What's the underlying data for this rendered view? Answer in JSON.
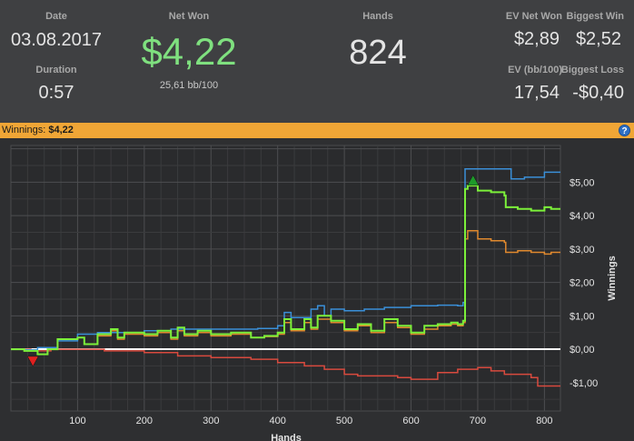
{
  "stats": {
    "date_label": "Date",
    "date": "03.08.2017",
    "duration_label": "Duration",
    "duration": "0:57",
    "net_won_label": "Net Won",
    "net_won": "$4,22",
    "bb_per_100": "25,61 bb/100",
    "hands_label": "Hands",
    "hands": "824",
    "ev_net_won_label": "EV Net Won",
    "ev_net_won": "$2,89",
    "biggest_win_label": "Biggest Win",
    "biggest_win": "$2,52",
    "ev_bb_label": "EV (bb/100)",
    "ev_bb": "17,54",
    "biggest_loss_label": "Biggest Loss",
    "biggest_loss": "-$0,40"
  },
  "winnings_bar": {
    "label": "Winnings:",
    "value": "$4,22",
    "help_icon": "question-icon",
    "help_glyph": "?"
  },
  "colors": {
    "net_won": "#7fe07f",
    "bar": "#f0a636",
    "green_line": "#7cf03a",
    "blue_line": "#3a8fd8",
    "orange_line": "#e0892e",
    "red_line": "#d84a3e",
    "zero_line": "#ffffff"
  },
  "chart_data": {
    "type": "line",
    "xlabel": "Hands",
    "ylabel": "Winnings",
    "xlim": [
      0,
      824
    ],
    "ylim": [
      -1.85,
      6.1
    ],
    "x_ticks": [
      100,
      200,
      300,
      400,
      500,
      600,
      700,
      800
    ],
    "x_tick_labels": [
      "100",
      "200",
      "300",
      "400",
      "500",
      "600",
      "700",
      "800"
    ],
    "y_ticks": [
      5,
      4,
      3,
      2,
      1,
      0,
      -1
    ],
    "y_tick_labels": [
      "$5,00",
      "$4,00",
      "$3,00",
      "$2,00",
      "$1,00",
      "$0,00",
      "-$1,00"
    ],
    "series": [
      {
        "key": "blue",
        "x": [
          0,
          20,
          40,
          70,
          100,
          130,
          200,
          240,
          300,
          370,
          400,
          410,
          420,
          450,
          460,
          470,
          480,
          500,
          530,
          560,
          600,
          640,
          670,
          678,
          681,
          700,
          740,
          750,
          770,
          790,
          800,
          824
        ],
        "y": [
          0,
          -0.02,
          0.05,
          0.25,
          0.45,
          0.5,
          0.55,
          0.6,
          0.6,
          0.62,
          0.7,
          1.1,
          0.95,
          1.2,
          1.3,
          1.0,
          1.2,
          1.15,
          1.2,
          1.25,
          1.3,
          1.32,
          1.3,
          1.4,
          5.4,
          5.4,
          5.4,
          5.1,
          5.15,
          5.15,
          5.3,
          5.3
        ]
      },
      {
        "key": "green",
        "x": [
          0,
          20,
          40,
          55,
          70,
          100,
          110,
          130,
          150,
          160,
          170,
          200,
          220,
          240,
          250,
          260,
          280,
          300,
          330,
          360,
          380,
          400,
          410,
          420,
          440,
          450,
          460,
          480,
          500,
          520,
          540,
          560,
          580,
          600,
          620,
          640,
          660,
          670,
          678,
          681,
          685,
          700,
          720,
          740,
          742,
          760,
          780,
          800,
          810,
          824
        ],
        "y": [
          0,
          -0.05,
          -0.15,
          0,
          0.3,
          0.35,
          0.15,
          0.45,
          0.6,
          0.35,
          0.5,
          0.45,
          0.55,
          0.35,
          0.65,
          0.45,
          0.55,
          0.45,
          0.5,
          0.35,
          0.4,
          0.5,
          0.9,
          0.6,
          0.9,
          0.65,
          1.0,
          0.85,
          0.6,
          0.75,
          0.55,
          0.9,
          0.7,
          0.5,
          0.7,
          0.75,
          0.8,
          0.75,
          0.85,
          4.8,
          4.9,
          4.75,
          4.7,
          4.6,
          4.25,
          4.2,
          4.15,
          4.25,
          4.2,
          4.2
        ]
      },
      {
        "key": "orange",
        "x": [
          0,
          20,
          40,
          55,
          70,
          100,
          110,
          130,
          150,
          160,
          170,
          200,
          220,
          240,
          250,
          260,
          280,
          300,
          330,
          360,
          380,
          400,
          410,
          420,
          440,
          450,
          460,
          480,
          500,
          520,
          540,
          560,
          580,
          600,
          620,
          640,
          660,
          670,
          678,
          681,
          685,
          700,
          720,
          740,
          742,
          760,
          780,
          800,
          810,
          824
        ],
        "y": [
          0,
          -0.05,
          -0.15,
          0,
          0.3,
          0.35,
          0.15,
          0.4,
          0.55,
          0.3,
          0.45,
          0.4,
          0.5,
          0.3,
          0.55,
          0.4,
          0.5,
          0.4,
          0.45,
          0.35,
          0.38,
          0.45,
          0.8,
          0.55,
          0.8,
          0.6,
          0.9,
          0.8,
          0.55,
          0.7,
          0.5,
          0.8,
          0.65,
          0.45,
          0.6,
          0.7,
          0.75,
          0.7,
          0.8,
          3.3,
          3.55,
          3.3,
          3.25,
          3.2,
          2.9,
          2.95,
          2.9,
          2.85,
          2.9,
          2.9
        ]
      },
      {
        "key": "red",
        "x": [
          0,
          30,
          60,
          100,
          140,
          200,
          250,
          300,
          330,
          360,
          400,
          440,
          470,
          500,
          520,
          550,
          580,
          600,
          640,
          670,
          700,
          720,
          740,
          760,
          780,
          790,
          824
        ],
        "y": [
          0,
          -0.05,
          0,
          0,
          -0.05,
          -0.1,
          -0.2,
          -0.25,
          -0.25,
          -0.3,
          -0.4,
          -0.5,
          -0.6,
          -0.75,
          -0.8,
          -0.8,
          -0.85,
          -0.9,
          -0.7,
          -0.6,
          -0.55,
          -0.65,
          -0.75,
          -0.75,
          -0.85,
          -1.1,
          -1.1
        ]
      }
    ],
    "zero_line": 0,
    "markers": [
      {
        "type": "max",
        "x": 693,
        "y": 5.05,
        "color": "#1e9a2a"
      },
      {
        "type": "min",
        "x": 33,
        "y": -0.35,
        "color": "#e02020"
      }
    ]
  }
}
